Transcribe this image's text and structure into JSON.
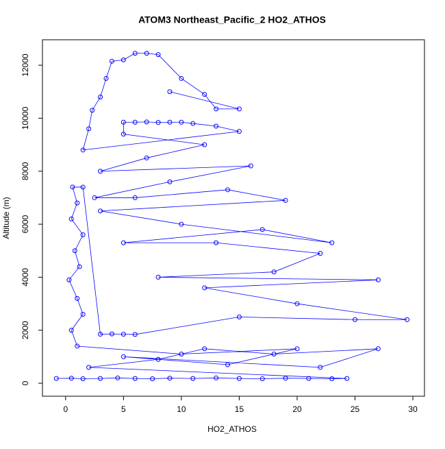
{
  "chart_data": {
    "type": "scatter",
    "lines": true,
    "title": "ATOM3 Northeast_Pacific_2 HO2_ATHOS",
    "xlabel": "HO2_ATHOS",
    "ylabel": "Altitude (m)",
    "color": "#0000ff",
    "x": [
      -0.8,
      0.5,
      1.5,
      3,
      4.5,
      6,
      7.5,
      9,
      11,
      13,
      15,
      17,
      19,
      21,
      23,
      24.3,
      2,
      8,
      12,
      18,
      27,
      22,
      5,
      14,
      20,
      10,
      1,
      0.5,
      1.5,
      1,
      0.3,
      1.2,
      0.8,
      1.5,
      0.5,
      1,
      0.6,
      1.5,
      3,
      4,
      5,
      6,
      15,
      25,
      29.5,
      20,
      12,
      27,
      8,
      18,
      22,
      13,
      5,
      17,
      23,
      10,
      3,
      19,
      14,
      6,
      2.5,
      9,
      16,
      3,
      7,
      12,
      5,
      5,
      6,
      7,
      8,
      9,
      10,
      11,
      13,
      15,
      1.5,
      2,
      2.3,
      3,
      3.5,
      4,
      5,
      6,
      7,
      8,
      10,
      12,
      13,
      15,
      9
    ],
    "values": [
      180,
      190,
      170,
      180,
      200,
      180,
      170,
      190,
      180,
      200,
      180,
      170,
      190,
      180,
      170,
      180,
      600,
      900,
      1300,
      1100,
      1300,
      600,
      1000,
      700,
      1300,
      1100,
      1400,
      2000,
      2600,
      3200,
      3900,
      4400,
      5000,
      5600,
      6200,
      6800,
      7400,
      7400,
      1850,
      1860,
      1850,
      1840,
      2500,
      2400,
      2400,
      3000,
      3600,
      3900,
      4000,
      4200,
      4900,
      5300,
      5300,
      5800,
      5300,
      6000,
      6500,
      6900,
      7300,
      7000,
      7000,
      7600,
      8200,
      8000,
      8500,
      9000,
      9400,
      9850,
      9850,
      9860,
      9840,
      9850,
      9850,
      9800,
      9700,
      9500,
      8800,
      9600,
      10300,
      10800,
      11500,
      12150,
      12200,
      12450,
      12450,
      12400,
      11500,
      10900,
      10350,
      10350,
      11000
    ],
    "xlim": [
      -2,
      31
    ],
    "ylim": [
      -490,
      12960
    ],
    "xticks": [
      0,
      5,
      10,
      15,
      20,
      25,
      30
    ],
    "yticks": [
      0,
      2000,
      4000,
      6000,
      8000,
      10000,
      12000
    ]
  }
}
